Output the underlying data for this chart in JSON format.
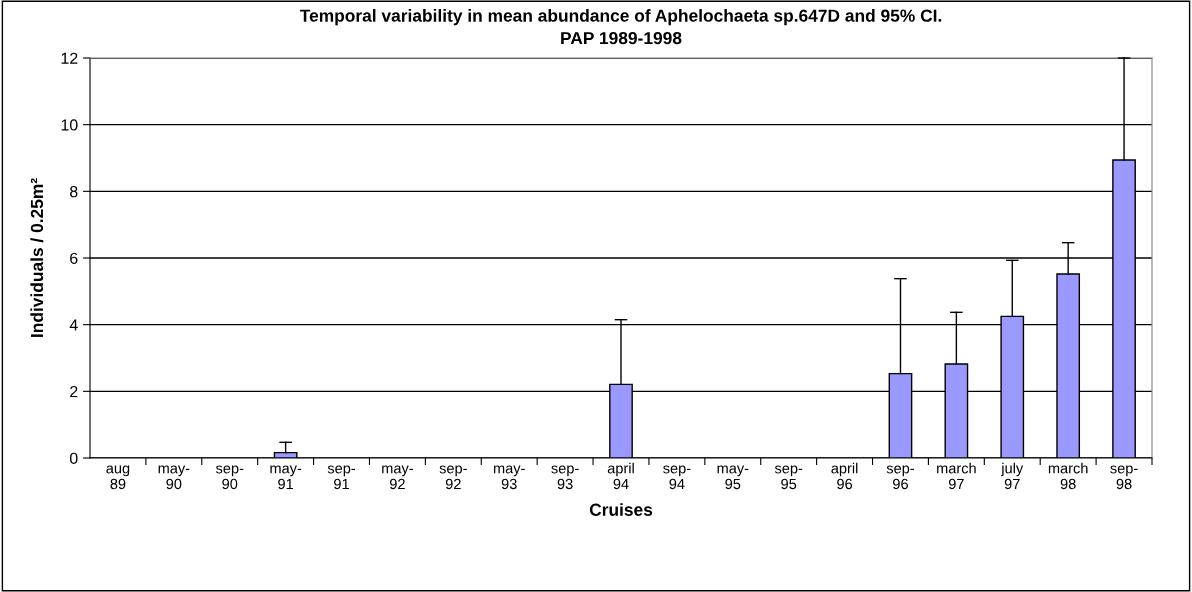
{
  "chart_data": {
    "type": "bar",
    "title": "Temporal variability in mean abundance of Aphelochaeta sp.647D and 95% CI.\nPAP 1989-1998",
    "xlabel": "Cruises",
    "ylabel": "Individuals / 0.25m²",
    "categories": [
      "aug\n89",
      "may-\n90",
      "sep-\n90",
      "may-\n91",
      "sep-\n91",
      "may-\n92",
      "sep-\n92",
      "may-\n93",
      "sep-\n93",
      "april\n94",
      "sep-\n94",
      "may-\n95",
      "sep-\n95",
      "april\n96",
      "sep-\n96",
      "march\n97",
      "july\n97",
      "march\n98",
      "sep-\n98"
    ],
    "values": [
      0,
      0,
      0,
      0.16,
      0,
      0,
      0,
      0,
      0,
      2.21,
      0,
      0,
      0,
      0,
      2.53,
      2.82,
      4.25,
      5.52,
      8.94
    ],
    "errors": [
      null,
      null,
      null,
      [
        0.16,
        0.47
      ],
      null,
      null,
      null,
      null,
      null,
      [
        2.21,
        4.15
      ],
      null,
      null,
      null,
      null,
      [
        2.53,
        5.38
      ],
      [
        2.82,
        4.37
      ],
      [
        4.25,
        5.93
      ],
      [
        5.52,
        6.46
      ],
      [
        8.94,
        12
      ]
    ],
    "color": "#9999ff",
    "ylim": [
      0,
      12
    ],
    "yticks": [
      0,
      2,
      4,
      6,
      8,
      10,
      12
    ],
    "grid": "y",
    "legend": false
  }
}
